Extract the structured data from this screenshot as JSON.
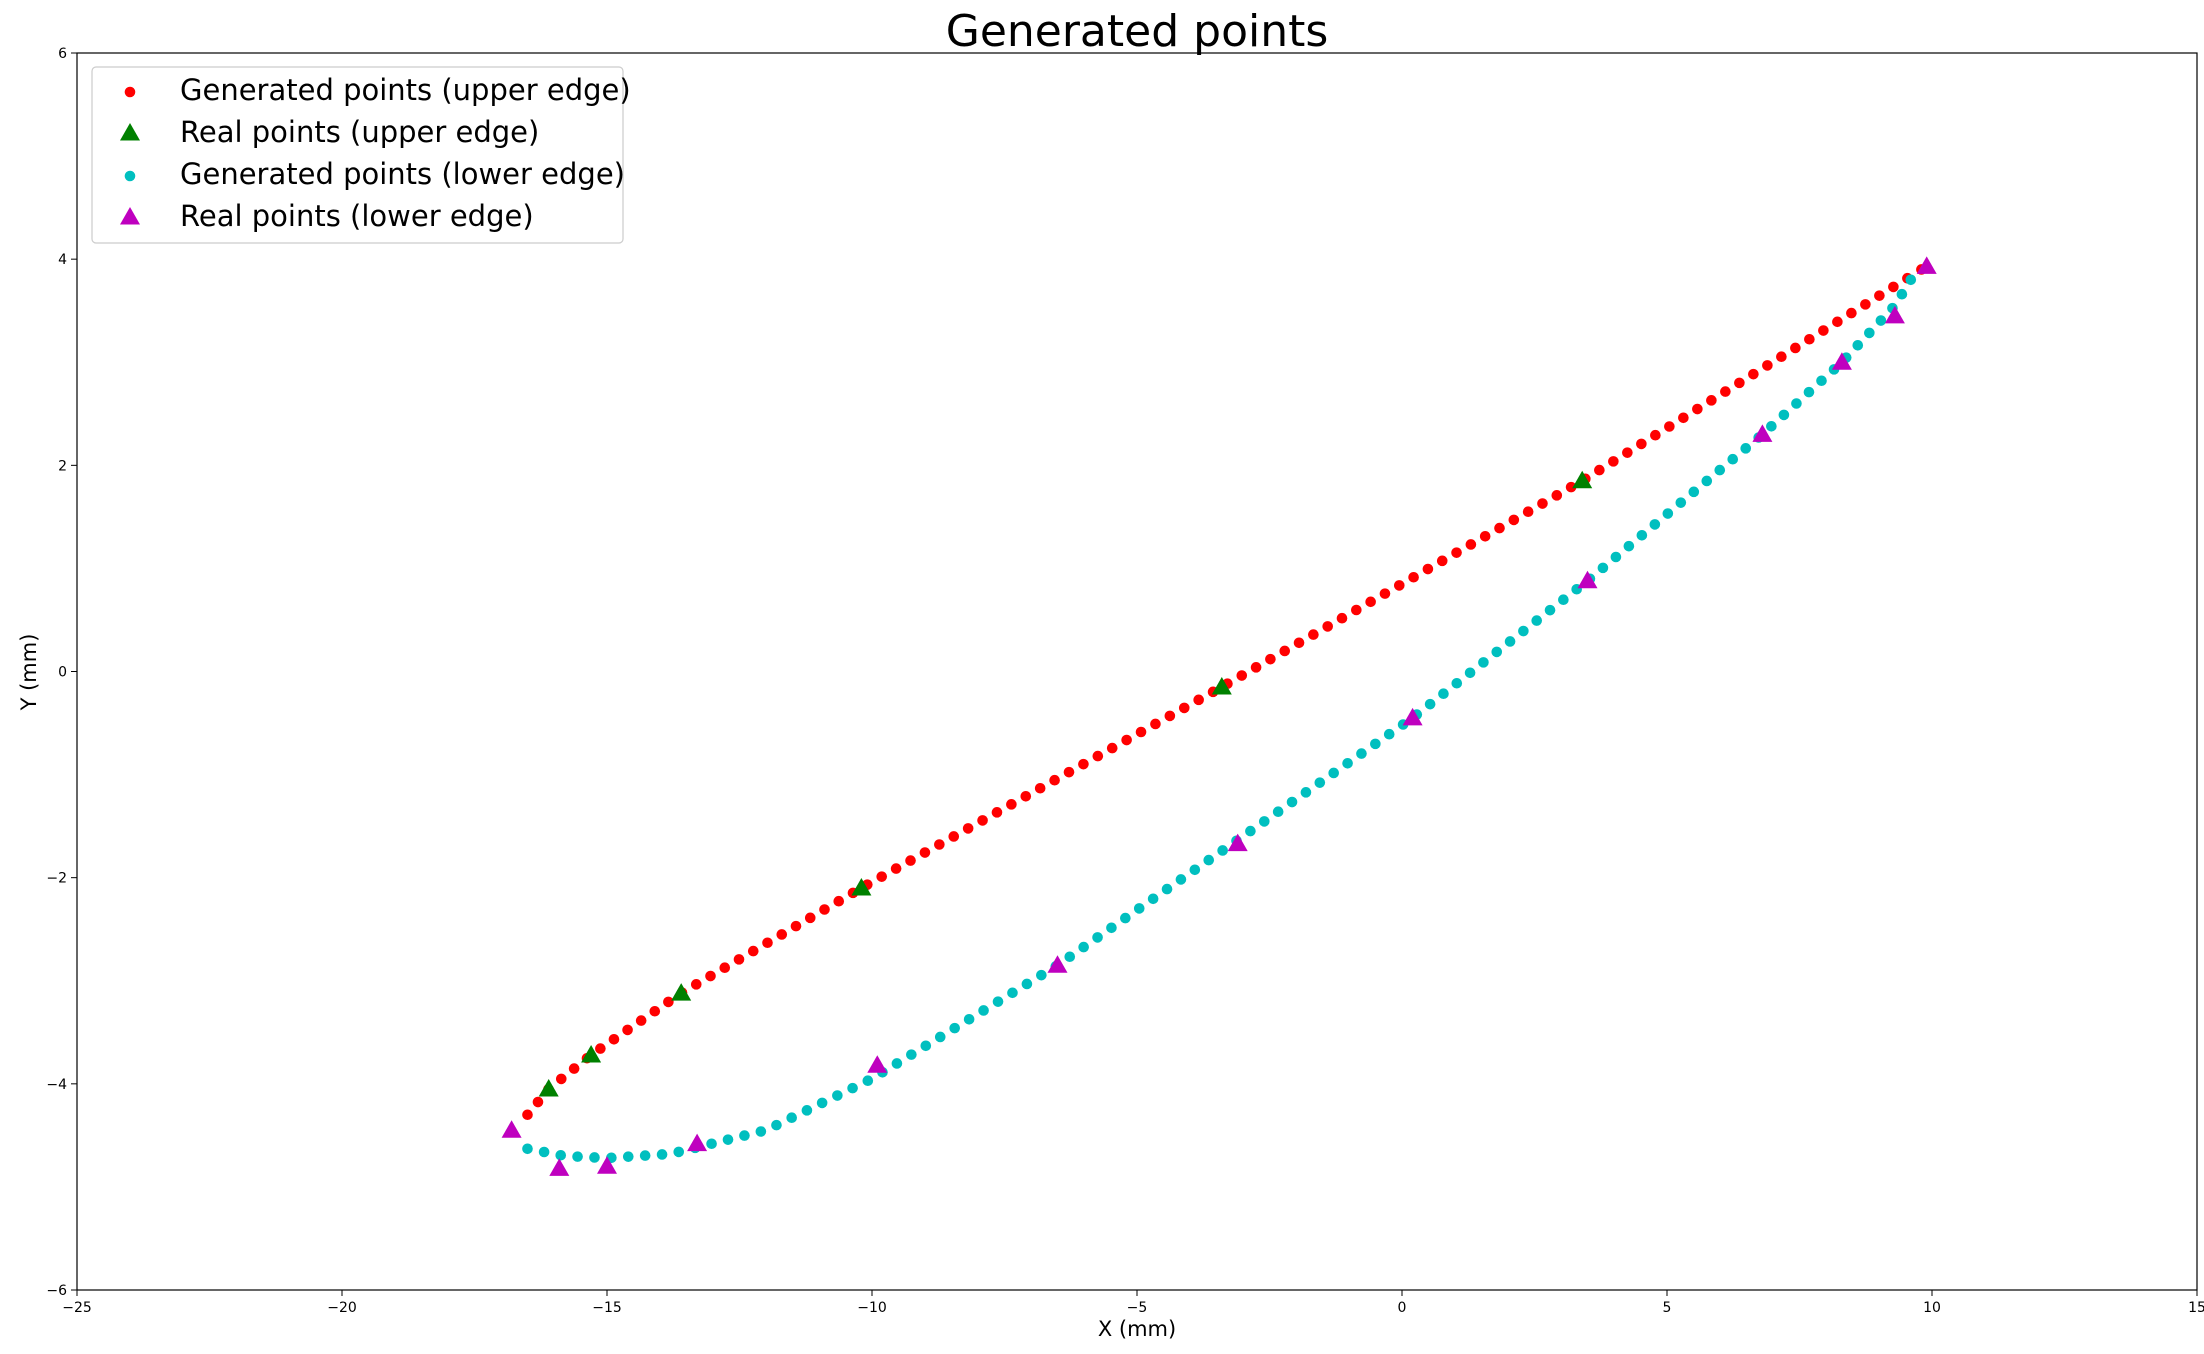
{
  "chart_data": {
    "type": "scatter",
    "title": "Generated points",
    "xlabel": "X (mm)",
    "ylabel": "Y (mm)",
    "xlim": [
      -25,
      15
    ],
    "ylim": [
      -6,
      6
    ],
    "xticks": [
      -25,
      -20,
      -15,
      -10,
      -5,
      0,
      5,
      10,
      15
    ],
    "yticks": [
      -6,
      -4,
      -2,
      0,
      2,
      4,
      6
    ],
    "xtick_labels": [
      "−25",
      "−20",
      "−15",
      "−10",
      "−5",
      "0",
      "5",
      "10",
      "15"
    ],
    "ytick_labels": [
      "−6",
      "−4",
      "−2",
      "0",
      "2",
      "4",
      "6"
    ],
    "grid": false,
    "legend_position": "top-left",
    "series": [
      {
        "name": "Generated points (upper edge)",
        "marker": "circle",
        "color": "#ff0000",
        "generated": true,
        "x_range": [
          -16.5,
          9.8
        ],
        "count": 100,
        "real_anchor_x": [
          -16.5,
          -16.1,
          -15.3,
          -13.6,
          -10.2,
          -3.4,
          3.4,
          9.8
        ],
        "real_anchor_y": [
          -4.3,
          -4.05,
          -3.72,
          -3.12,
          -2.1,
          -0.15,
          1.85,
          3.9
        ]
      },
      {
        "name": "Real points (upper edge)",
        "marker": "triangle",
        "color": "#008000",
        "x": [
          -16.1,
          -15.3,
          -13.6,
          -10.2,
          -3.4,
          3.4
        ],
        "y": [
          -4.05,
          -3.72,
          -3.12,
          -2.1,
          -0.15,
          1.85
        ]
      },
      {
        "name": "Generated points (lower edge)",
        "marker": "circle",
        "color": "#00bfbf",
        "generated": true,
        "x_range": [
          -16.5,
          9.6
        ],
        "count": 100,
        "real_anchor_x": [
          -16.5,
          -15.8,
          -15.0,
          -13.8,
          -12.0,
          -10.0,
          -6.5,
          -3.2,
          0.2,
          3.5,
          6.8,
          8.3,
          9.3,
          9.6
        ],
        "real_anchor_y": [
          -4.63,
          -4.7,
          -4.72,
          -4.68,
          -4.45,
          -3.95,
          -2.85,
          -1.67,
          -0.45,
          0.88,
          2.3,
          3.0,
          3.55,
          3.8
        ]
      },
      {
        "name": "Real points (lower edge)",
        "marker": "triangle",
        "color": "#bf00bf",
        "x": [
          -16.8,
          -15.9,
          -15.0,
          -13.3,
          -9.9,
          -6.5,
          -3.1,
          0.2,
          3.5,
          6.8,
          8.3,
          9.3,
          9.9
        ],
        "y": [
          -4.45,
          -4.82,
          -4.8,
          -4.58,
          -3.82,
          -2.85,
          -1.67,
          -0.45,
          0.88,
          2.3,
          3.0,
          3.45,
          3.93
        ]
      }
    ]
  }
}
